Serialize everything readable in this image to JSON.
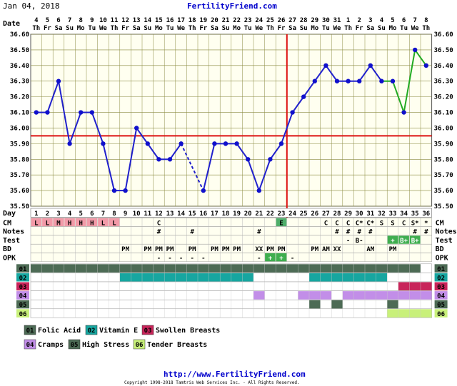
{
  "header": {
    "date": "Jan 04, 2018",
    "site": "FertilityFriend.com"
  },
  "footer": {
    "url": "http://www.FertilityFriend.com",
    "copyright": "Copyright 1998-2018 Tamtris Web Services Inc. - All Rights Reserved."
  },
  "chart_data": {
    "type": "line",
    "title": "",
    "xlabel": "Day",
    "ylabel": "",
    "ylim": [
      35.5,
      36.6
    ],
    "yticks": [
      "36.60",
      "36.50",
      "36.40",
      "36.30",
      "36.20",
      "36.10",
      "36.00",
      "35.90",
      "35.80",
      "35.70",
      "35.60",
      "35.50"
    ],
    "date_row_label": "Date",
    "dates": [
      "4",
      "5",
      "6",
      "7",
      "8",
      "9",
      "10",
      "11",
      "12",
      "13",
      "14",
      "15",
      "16",
      "17",
      "18",
      "19",
      "20",
      "21",
      "22",
      "23",
      "24",
      "25",
      "26",
      "27",
      "28",
      "29",
      "30",
      "31",
      "1",
      "2",
      "3",
      "4",
      "5",
      "6",
      "7",
      "8"
    ],
    "weekdays": [
      "Th",
      "Fr",
      "Sa",
      "Su",
      "Mo",
      "Tu",
      "We",
      "Th",
      "Fr",
      "Sa",
      "Su",
      "Mo",
      "Tu",
      "We",
      "Th",
      "Fr",
      "Sa",
      "Su",
      "Mo",
      "Tu",
      "We",
      "Th",
      "Fr",
      "Sa",
      "Su",
      "Mo",
      "Tu",
      "We",
      "Th",
      "Fr",
      "Sa",
      "Su",
      "Mo",
      "Tu",
      "We",
      "Th"
    ],
    "days": [
      "1",
      "2",
      "3",
      "4",
      "5",
      "6",
      "7",
      "8",
      "9",
      "10",
      "11",
      "12",
      "13",
      "14",
      "15",
      "16",
      "17",
      "18",
      "19",
      "20",
      "21",
      "22",
      "23",
      "24",
      "25",
      "26",
      "27",
      "28",
      "29",
      "30",
      "31",
      "32",
      "33",
      "34",
      "35",
      "36"
    ],
    "temps": [
      36.1,
      36.1,
      36.3,
      35.9,
      36.1,
      36.1,
      35.9,
      35.6,
      35.6,
      36.0,
      35.9,
      35.8,
      35.8,
      35.9,
      null,
      35.6,
      35.9,
      35.9,
      35.9,
      35.8,
      35.6,
      35.8,
      35.9,
      36.1,
      36.2,
      36.3,
      36.4,
      36.3,
      36.3,
      36.3,
      36.4,
      36.3,
      36.3,
      36.1,
      36.5,
      36.4
    ],
    "series_colors": {
      "main": "#2020cc",
      "recent": "#22aa22",
      "point": "#1010cc",
      "dashed": "#2020cc"
    },
    "recent_from_day": 32,
    "coverline": 35.95,
    "ovulation_day": 23,
    "colors": {
      "plot_bg": "#fffff0",
      "grid": "#8a8a40",
      "coverline": "#dd1111",
      "ovulation": "#dd1111",
      "cm_pink": "#f29aa8",
      "cm_green": "#4fae6a",
      "test_green": "#3fae4f",
      "opk_green": "#3fae4f",
      "c01": "#4d6b55",
      "c02": "#17a6a0",
      "c03": "#c8245a",
      "c04": "#c28ee8",
      "c05": "#4d6b55",
      "c06": "#c8f07a"
    },
    "rows": {
      "cm": {
        "label": "CM",
        "values": {
          "1": "L",
          "2": "L",
          "3": "M",
          "4": "H",
          "5": "H",
          "6": "H",
          "7": "L",
          "8": "L",
          "12": "C",
          "23": "E",
          "27": "C",
          "28": "C",
          "29": "C",
          "30": "C*",
          "31": "C*",
          "32": "S",
          "33": "S",
          "34": "C",
          "35": "S*",
          "36": "*"
        }
      },
      "notes": {
        "label": "Notes",
        "values": {
          "12": "#",
          "15": "#",
          "21": "#",
          "28": "#",
          "29": "#",
          "30": "#",
          "31": "#",
          "35": "#",
          "36": "#"
        }
      },
      "test": {
        "label": "Test",
        "values": {
          "29": "-",
          "30": "B-",
          "33": "+",
          "34": "B+",
          "35": "B+"
        }
      },
      "bd": {
        "label": "BD",
        "values": {
          "9": "PM",
          "11": "PM",
          "12": "PM",
          "13": "PM",
          "15": "PM",
          "17": "PM",
          "18": "PM",
          "19": "PM",
          "21": "XX",
          "22": "PM",
          "23": "PM",
          "26": "PM",
          "27": "AM",
          "28": "XX",
          "31": "AM",
          "33": "PM"
        }
      },
      "opk": {
        "label": "OPK",
        "values": {
          "12": "-",
          "13": "-",
          "14": "-",
          "15": "-",
          "16": "-",
          "21": "-",
          "22": "+",
          "23": "+",
          "24": "-"
        }
      }
    },
    "symptoms": [
      {
        "code": "01",
        "name": "Folic Acid",
        "color": "#4d6b55",
        "days": [
          1,
          35
        ]
      },
      {
        "code": "02",
        "name": "Vitamin E",
        "color": "#17a6a0",
        "days": [
          9,
          20,
          26,
          32
        ]
      },
      {
        "code": "03",
        "name": "Swollen Breasts",
        "color": "#c8245a",
        "days": [
          34,
          36
        ]
      },
      {
        "code": "04",
        "name": "Cramps",
        "color": "#c28ee8",
        "days": [
          21,
          21,
          25,
          27,
          29,
          36
        ]
      },
      {
        "code": "05",
        "name": "High Stress",
        "color": "#4d6b55",
        "days": [
          26,
          26,
          28,
          28,
          33,
          33
        ]
      },
      {
        "code": "06",
        "name": "Tender Breasts",
        "color": "#c8f07a",
        "days": [
          33,
          36
        ]
      }
    ]
  }
}
